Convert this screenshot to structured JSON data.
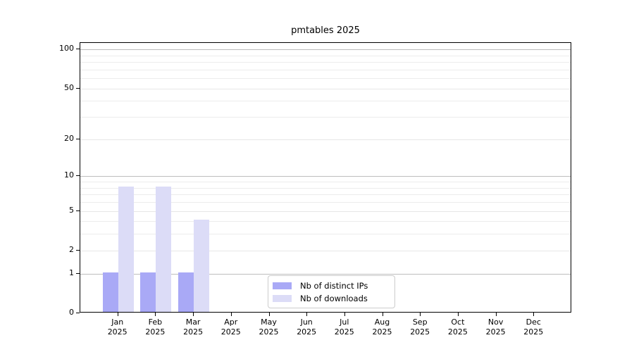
{
  "chart_data": {
    "type": "bar",
    "title": "pmtables 2025",
    "xlabel": "",
    "ylabel": "",
    "x": {
      "months": [
        "Jan",
        "Feb",
        "Mar",
        "Apr",
        "May",
        "Jun",
        "Jul",
        "Aug",
        "Sep",
        "Oct",
        "Nov",
        "Dec"
      ],
      "year": "2025"
    },
    "series": [
      {
        "name": "Nb of distinct IPs",
        "color": "#a9a9f6",
        "values": [
          1,
          1,
          1,
          0,
          0,
          0,
          0,
          0,
          0,
          0,
          0,
          0
        ]
      },
      {
        "name": "Nb of downloads",
        "color": "#dcdcf7",
        "values": [
          8,
          8,
          4,
          0,
          0,
          0,
          0,
          0,
          0,
          0,
          0,
          0
        ]
      }
    ],
    "y_axis": {
      "scale": "log1p",
      "ticks": [
        0,
        1,
        2,
        5,
        10,
        20,
        50,
        100
      ],
      "minor_gridlines": [
        3,
        4,
        6,
        7,
        8,
        9,
        30,
        40,
        60,
        70,
        80,
        90
      ],
      "emphasized_gridlines": [
        1,
        10,
        100
      ],
      "ymin": 0,
      "ymax": 112
    },
    "legend": {
      "entries": [
        "Nb of distinct IPs",
        "Nb of downloads"
      ],
      "position": "lower center"
    },
    "grid": true
  }
}
